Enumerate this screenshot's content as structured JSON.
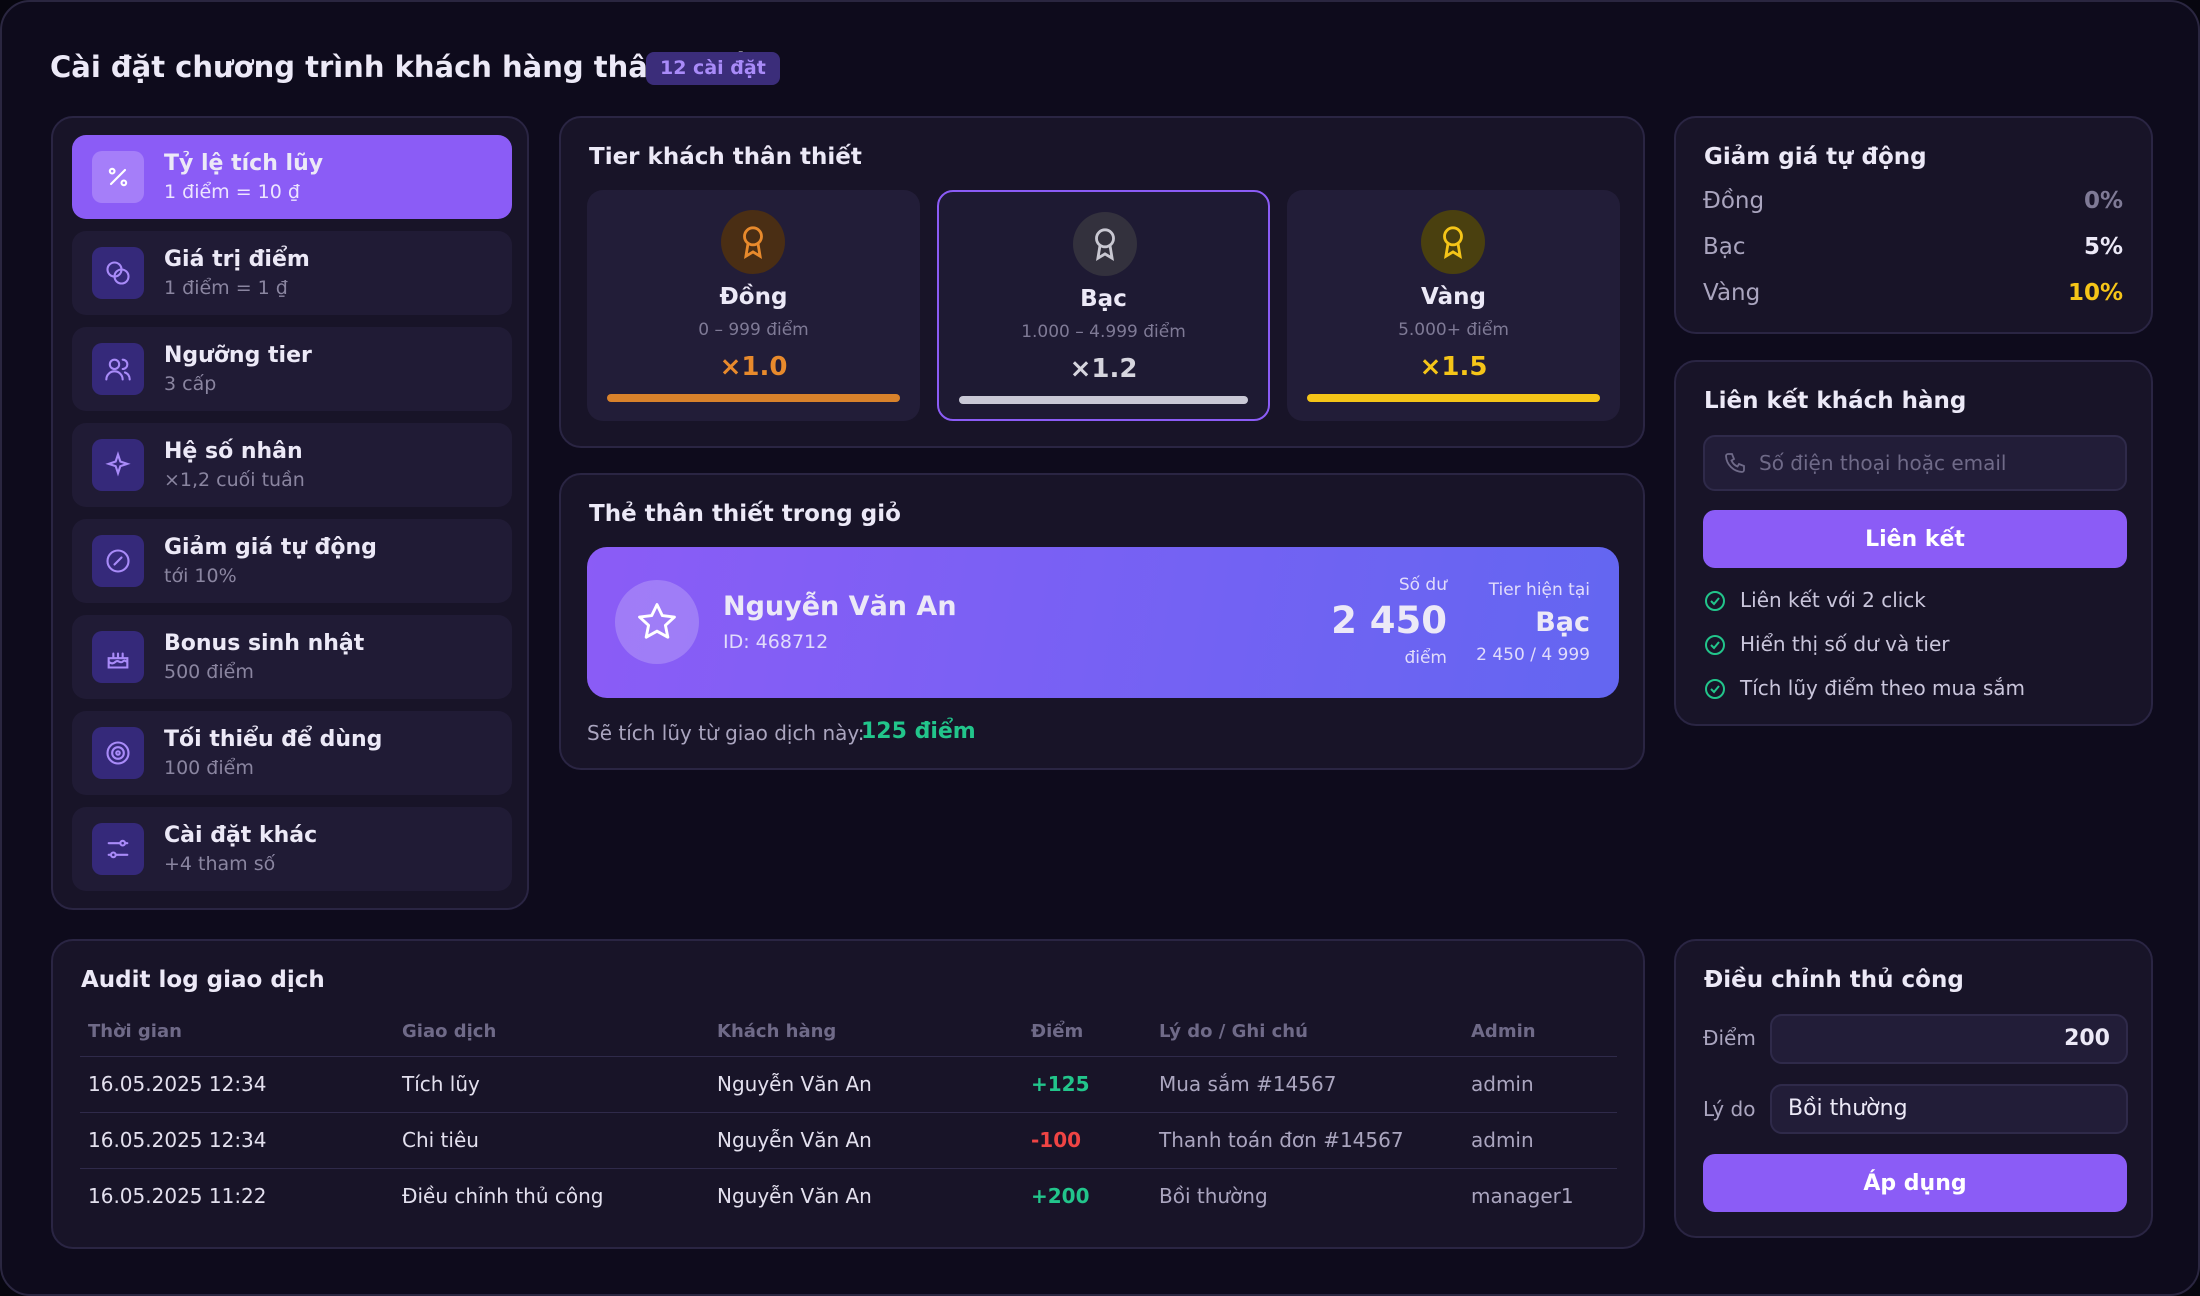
{
  "header": {
    "title": "Cài đặt chương trình khách hàng thân thiết",
    "badge": "12 cài đặt"
  },
  "menu": [
    {
      "label": "Tỷ lệ tích lũy",
      "sub": "1 điểm = 10 ₫"
    },
    {
      "label": "Giá trị điểm",
      "sub": "1 điểm = 1 ₫"
    },
    {
      "label": "Ngưỡng tier",
      "sub": "3 cấp"
    },
    {
      "label": "Hệ số nhân",
      "sub": "×1,2 cuối tuần"
    },
    {
      "label": "Giảm giá tự động",
      "sub": "tới 10%"
    },
    {
      "label": "Bonus sinh nhật",
      "sub": "500 điểm"
    },
    {
      "label": "Tối thiểu để dùng",
      "sub": "100 điểm"
    },
    {
      "label": "Cài đặt khác",
      "sub": "+4 tham số"
    }
  ],
  "tiers": {
    "title": "Tier khách thân thiết",
    "items": [
      {
        "name": "Đồng",
        "range": "0 – 999 điểm",
        "multiplier": "×1.0"
      },
      {
        "name": "Bạc",
        "range": "1.000 – 4.999 điểm",
        "multiplier": "×1.2"
      },
      {
        "name": "Vàng",
        "range": "5.000+ điểm",
        "multiplier": "×1.5"
      }
    ]
  },
  "card": {
    "title": "Thẻ thân thiết trong giỏ",
    "name": "Nguyễn Văn An",
    "id": "ID: 468712",
    "balance_label": "Số dư",
    "balance": "2 450",
    "balance_unit": "điểm",
    "tier_label": "Tier hiện tại",
    "tier": "Bạc",
    "progress": "2 450 / 4 999",
    "earn_label": "Sẽ tích lũy từ giao dịch này:",
    "earn_value": "125 điểm"
  },
  "discount": {
    "title": "Giảm giá tự động",
    "rows": [
      {
        "name": "Đồng",
        "value": "0%"
      },
      {
        "name": "Bạc",
        "value": "5%"
      },
      {
        "name": "Vàng",
        "value": "10%"
      }
    ]
  },
  "link": {
    "title": "Liên kết khách hàng",
    "placeholder": "Số điện thoại hoặc email",
    "button": "Liên kết",
    "features": [
      "Liên kết với 2 click",
      "Hiển thị số dư và tier",
      "Tích lũy điểm theo mua sắm"
    ]
  },
  "audit": {
    "title": "Audit log giao dịch",
    "columns": [
      "Thời gian",
      "Giao dịch",
      "Khách hàng",
      "Điểm",
      "Lý do / Ghi chú",
      "Admin"
    ],
    "rows": [
      [
        "16.05.2025 12:34",
        "Tích lũy",
        "Nguyễn Văn An",
        "+125",
        "Mua sắm #14567",
        "admin"
      ],
      [
        "16.05.2025 12:34",
        "Chi tiêu",
        "Nguyễn Văn An",
        "-100",
        "Thanh toán đơn #14567",
        "admin"
      ],
      [
        "16.05.2025 11:22",
        "Điều chỉnh thủ công",
        "Nguyễn Văn An",
        "+200",
        "Bồi thường",
        "manager1"
      ]
    ]
  },
  "manual": {
    "title": "Điều chỉnh thủ công",
    "points_label": "Điểm",
    "points_value": "200",
    "reason_label": "Lý do",
    "reason_value": "Bồi thường",
    "button": "Áp dụng"
  }
}
